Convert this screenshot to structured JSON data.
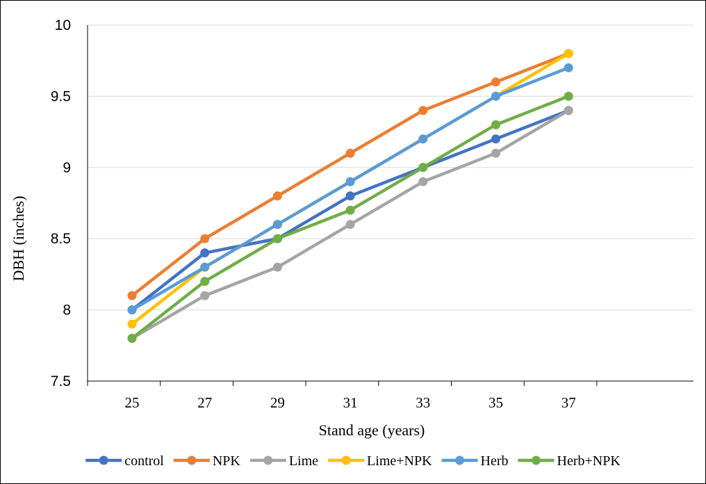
{
  "chart_data": {
    "type": "line",
    "title": "",
    "xlabel": "Stand age (years)",
    "ylabel": "DBH (inches)",
    "x": [
      25,
      27,
      29,
      31,
      33,
      35,
      37
    ],
    "ylim": [
      7.5,
      10
    ],
    "yticks": [
      "7.5",
      "8",
      "8.5",
      "9",
      "9.5",
      "10"
    ],
    "grid": "horizontal",
    "legend_position": "bottom",
    "series": [
      {
        "name": "control",
        "color": "#4472C4",
        "values": [
          8.0,
          8.4,
          8.5,
          8.8,
          9.0,
          9.2,
          9.4
        ]
      },
      {
        "name": "NPK",
        "color": "#ED7D31",
        "values": [
          8.1,
          8.5,
          8.8,
          9.1,
          9.4,
          9.6,
          9.8
        ]
      },
      {
        "name": "Lime",
        "color": "#A5A5A5",
        "values": [
          7.8,
          8.1,
          8.3,
          8.6,
          8.9,
          9.1,
          9.4
        ]
      },
      {
        "name": "Lime+NPK",
        "color": "#FFC000",
        "values": [
          7.9,
          8.3,
          8.6,
          8.9,
          9.2,
          9.5,
          9.8
        ]
      },
      {
        "name": "Herb",
        "color": "#5B9BD5",
        "values": [
          8.0,
          8.3,
          8.6,
          8.9,
          9.2,
          9.5,
          9.7
        ]
      },
      {
        "name": "Herb+NPK",
        "color": "#70AD47",
        "values": [
          7.8,
          8.2,
          8.5,
          8.7,
          9.0,
          9.3,
          9.5
        ]
      }
    ]
  }
}
